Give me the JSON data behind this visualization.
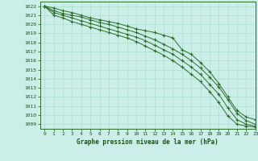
{
  "title": "Graphe pression niveau de la mer (hPa)",
  "bg_color": "#cceee8",
  "grid_color": "#aaddcc",
  "line_color": "#2d6e2d",
  "text_color": "#1a4f1a",
  "xlim": [
    -0.5,
    23
  ],
  "ylim": [
    1008.5,
    1022.5
  ],
  "yticks": [
    1009,
    1010,
    1011,
    1012,
    1013,
    1014,
    1015,
    1016,
    1017,
    1018,
    1019,
    1020,
    1021,
    1022
  ],
  "xticks": [
    0,
    1,
    2,
    3,
    4,
    5,
    6,
    7,
    8,
    9,
    10,
    11,
    12,
    13,
    14,
    15,
    16,
    17,
    18,
    19,
    20,
    21,
    22,
    23
  ],
  "series": [
    [
      1022.0,
      1021.8,
      1021.5,
      1021.3,
      1021.0,
      1020.7,
      1020.5,
      1020.3,
      1020.1,
      1019.8,
      1019.5,
      1019.3,
      1019.1,
      1018.8,
      1018.5,
      1017.2,
      1016.7,
      1015.8,
      1014.8,
      1013.5,
      1012.0,
      1010.5,
      1009.8,
      1009.5
    ],
    [
      1022.0,
      1021.5,
      1021.2,
      1021.0,
      1020.8,
      1020.5,
      1020.2,
      1020.0,
      1019.7,
      1019.4,
      1019.1,
      1018.7,
      1018.3,
      1017.8,
      1017.3,
      1016.7,
      1016.0,
      1015.2,
      1014.2,
      1013.1,
      1011.7,
      1010.2,
      1009.4,
      1009.0
    ],
    [
      1022.0,
      1021.3,
      1021.0,
      1020.7,
      1020.4,
      1020.1,
      1019.8,
      1019.5,
      1019.2,
      1018.9,
      1018.6,
      1018.2,
      1017.7,
      1017.2,
      1016.7,
      1016.0,
      1015.3,
      1014.5,
      1013.4,
      1012.3,
      1010.8,
      1009.5,
      1009.0,
      1008.8
    ],
    [
      1022.0,
      1021.0,
      1020.7,
      1020.3,
      1020.0,
      1019.7,
      1019.4,
      1019.1,
      1018.8,
      1018.5,
      1018.1,
      1017.6,
      1017.1,
      1016.6,
      1016.0,
      1015.3,
      1014.5,
      1013.7,
      1012.6,
      1011.4,
      1009.9,
      1009.0,
      1008.8,
      1008.7
    ]
  ]
}
